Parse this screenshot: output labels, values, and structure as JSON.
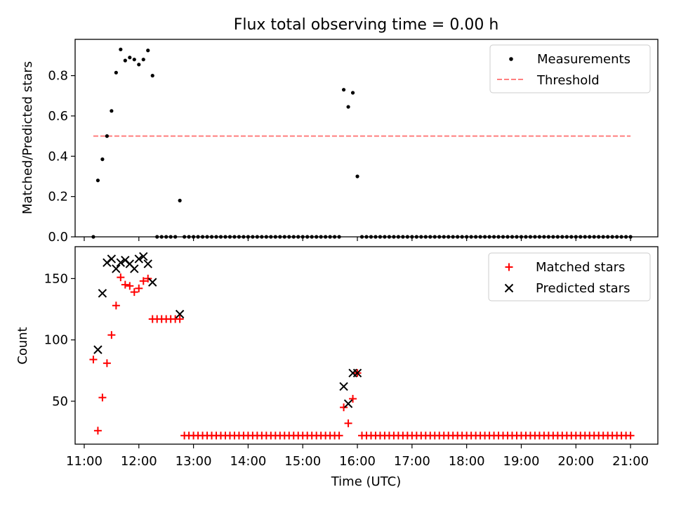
{
  "figure": {
    "title": "Flux total observing time = 0.00 h",
    "xlabel": "Time (UTC)",
    "xtick_labels": [
      "11:00",
      "12:00",
      "13:00",
      "14:00",
      "15:00",
      "16:00",
      "17:00",
      "18:00",
      "19:00",
      "20:00",
      "21:00"
    ]
  },
  "colors": {
    "measurements": "#000000",
    "threshold": "#ff7f7f",
    "matched": "#ff0000",
    "predicted": "#000000"
  },
  "chart_data": [
    {
      "type": "scatter",
      "panel": "top",
      "ylabel": "Matched/Predicted stars",
      "xlim": [
        "10:50",
        "21:30"
      ],
      "ylim": [
        0,
        0.98
      ],
      "yticks": [
        0.0,
        0.2,
        0.4,
        0.6,
        0.8
      ],
      "ytick_labels": [
        "0.0",
        "0.2",
        "0.4",
        "0.6",
        "0.8"
      ],
      "legend_position": "upper right",
      "series": [
        {
          "name": "Measurements",
          "marker": "dot",
          "points": [
            [
              "11:10",
              0
            ],
            [
              "11:15",
              0.28
            ],
            [
              "11:20",
              0.385
            ],
            [
              "11:25",
              0.5
            ],
            [
              "11:30",
              0.625
            ],
            [
              "11:35",
              0.815
            ],
            [
              "11:40",
              0.93
            ],
            [
              "11:45",
              0.875
            ],
            [
              "11:50",
              0.89
            ],
            [
              "11:55",
              0.88
            ],
            [
              "12:00",
              0.855
            ],
            [
              "12:05",
              0.88
            ],
            [
              "12:10",
              0.925
            ],
            [
              "12:15",
              0.8
            ],
            [
              "12:20",
              0
            ],
            [
              "12:25",
              0
            ],
            [
              "12:30",
              0
            ],
            [
              "12:35",
              0
            ],
            [
              "12:40",
              0
            ],
            [
              "12:45",
              0.18
            ],
            [
              "12:50",
              0
            ],
            [
              "12:55",
              0
            ],
            [
              "13:00",
              0
            ],
            [
              "13:05",
              0
            ],
            [
              "13:10",
              0
            ],
            [
              "13:15",
              0
            ],
            [
              "13:20",
              0
            ],
            [
              "13:25",
              0
            ],
            [
              "13:30",
              0
            ],
            [
              "13:35",
              0
            ],
            [
              "13:40",
              0
            ],
            [
              "13:45",
              0
            ],
            [
              "13:50",
              0
            ],
            [
              "13:55",
              0
            ],
            [
              "14:00",
              0
            ],
            [
              "14:05",
              0
            ],
            [
              "14:10",
              0
            ],
            [
              "14:15",
              0
            ],
            [
              "14:20",
              0
            ],
            [
              "14:25",
              0
            ],
            [
              "14:30",
              0
            ],
            [
              "14:35",
              0
            ],
            [
              "14:40",
              0
            ],
            [
              "14:45",
              0
            ],
            [
              "14:50",
              0
            ],
            [
              "14:55",
              0
            ],
            [
              "15:00",
              0
            ],
            [
              "15:05",
              0
            ],
            [
              "15:10",
              0
            ],
            [
              "15:15",
              0
            ],
            [
              "15:20",
              0
            ],
            [
              "15:25",
              0
            ],
            [
              "15:30",
              0
            ],
            [
              "15:35",
              0
            ],
            [
              "15:40",
              0
            ],
            [
              "15:45",
              0.73
            ],
            [
              "15:50",
              0.645
            ],
            [
              "15:55",
              0.715
            ],
            [
              "16:00",
              0.3
            ],
            [
              "16:05",
              0
            ],
            [
              "16:10",
              0
            ],
            [
              "16:15",
              0
            ],
            [
              "16:20",
              0
            ],
            [
              "16:25",
              0
            ],
            [
              "16:30",
              0
            ],
            [
              "16:35",
              0
            ],
            [
              "16:40",
              0
            ],
            [
              "16:45",
              0
            ],
            [
              "16:50",
              0
            ],
            [
              "16:55",
              0
            ],
            [
              "17:00",
              0
            ],
            [
              "17:05",
              0
            ],
            [
              "17:10",
              0
            ],
            [
              "17:15",
              0
            ],
            [
              "17:20",
              0
            ],
            [
              "17:25",
              0
            ],
            [
              "17:30",
              0
            ],
            [
              "17:35",
              0
            ],
            [
              "17:40",
              0
            ],
            [
              "17:45",
              0
            ],
            [
              "17:50",
              0
            ],
            [
              "17:55",
              0
            ],
            [
              "18:00",
              0
            ],
            [
              "18:05",
              0
            ],
            [
              "18:10",
              0
            ],
            [
              "18:15",
              0
            ],
            [
              "18:20",
              0
            ],
            [
              "18:25",
              0
            ],
            [
              "18:30",
              0
            ],
            [
              "18:35",
              0
            ],
            [
              "18:40",
              0
            ],
            [
              "18:45",
              0
            ],
            [
              "18:50",
              0
            ],
            [
              "18:55",
              0
            ],
            [
              "19:00",
              0
            ],
            [
              "19:05",
              0
            ],
            [
              "19:10",
              0
            ],
            [
              "19:15",
              0
            ],
            [
              "19:20",
              0
            ],
            [
              "19:25",
              0
            ],
            [
              "19:30",
              0
            ],
            [
              "19:35",
              0
            ],
            [
              "19:40",
              0
            ],
            [
              "19:45",
              0
            ],
            [
              "19:50",
              0
            ],
            [
              "19:55",
              0
            ],
            [
              "20:00",
              0
            ],
            [
              "20:05",
              0
            ],
            [
              "20:10",
              0
            ],
            [
              "20:15",
              0
            ],
            [
              "20:20",
              0
            ],
            [
              "20:25",
              0
            ],
            [
              "20:30",
              0
            ],
            [
              "20:35",
              0
            ],
            [
              "20:40",
              0
            ],
            [
              "20:45",
              0
            ],
            [
              "20:50",
              0
            ],
            [
              "20:55",
              0
            ],
            [
              "21:00",
              0
            ]
          ]
        },
        {
          "name": "Threshold",
          "type": "line",
          "style": "dashed",
          "points": [
            [
              "11:10",
              0.5
            ],
            [
              "21:00",
              0.5
            ]
          ]
        }
      ]
    },
    {
      "type": "scatter",
      "panel": "bottom",
      "ylabel": "Count",
      "xlim": [
        "10:50",
        "21:30"
      ],
      "ylim": [
        15,
        176
      ],
      "yticks": [
        50,
        100,
        150
      ],
      "ytick_labels": [
        "50",
        "100",
        "150"
      ],
      "legend_position": "upper right",
      "series": [
        {
          "name": "Matched stars",
          "marker": "plus",
          "points": [
            [
              "11:10",
              84
            ],
            [
              "11:15",
              26
            ],
            [
              "11:20",
              53
            ],
            [
              "11:25",
              81
            ],
            [
              "11:30",
              104
            ],
            [
              "11:35",
              128
            ],
            [
              "11:40",
              151
            ],
            [
              "11:45",
              145
            ],
            [
              "11:50",
              144
            ],
            [
              "11:55",
              139
            ],
            [
              "12:00",
              142
            ],
            [
              "12:05",
              148
            ],
            [
              "12:10",
              150
            ],
            [
              "12:15",
              117
            ],
            [
              "12:20",
              117
            ],
            [
              "12:25",
              117
            ],
            [
              "12:30",
              117
            ],
            [
              "12:35",
              117
            ],
            [
              "12:40",
              117
            ],
            [
              "12:45",
              117
            ],
            [
              "12:50",
              22
            ],
            [
              "12:55",
              22
            ],
            [
              "13:00",
              22
            ],
            [
              "13:05",
              22
            ],
            [
              "13:10",
              22
            ],
            [
              "13:15",
              22
            ],
            [
              "13:20",
              22
            ],
            [
              "13:25",
              22
            ],
            [
              "13:30",
              22
            ],
            [
              "13:35",
              22
            ],
            [
              "13:40",
              22
            ],
            [
              "13:45",
              22
            ],
            [
              "13:50",
              22
            ],
            [
              "13:55",
              22
            ],
            [
              "14:00",
              22
            ],
            [
              "14:05",
              22
            ],
            [
              "14:10",
              22
            ],
            [
              "14:15",
              22
            ],
            [
              "14:20",
              22
            ],
            [
              "14:25",
              22
            ],
            [
              "14:30",
              22
            ],
            [
              "14:35",
              22
            ],
            [
              "14:40",
              22
            ],
            [
              "14:45",
              22
            ],
            [
              "14:50",
              22
            ],
            [
              "14:55",
              22
            ],
            [
              "15:00",
              22
            ],
            [
              "15:05",
              22
            ],
            [
              "15:10",
              22
            ],
            [
              "15:15",
              22
            ],
            [
              "15:20",
              22
            ],
            [
              "15:25",
              22
            ],
            [
              "15:30",
              22
            ],
            [
              "15:35",
              22
            ],
            [
              "15:40",
              22
            ],
            [
              "15:45",
              45
            ],
            [
              "15:50",
              32
            ],
            [
              "15:55",
              52
            ],
            [
              "16:00",
              73
            ],
            [
              "16:05",
              22
            ],
            [
              "16:10",
              22
            ],
            [
              "16:15",
              22
            ],
            [
              "16:20",
              22
            ],
            [
              "16:25",
              22
            ],
            [
              "16:30",
              22
            ],
            [
              "16:35",
              22
            ],
            [
              "16:40",
              22
            ],
            [
              "16:45",
              22
            ],
            [
              "16:50",
              22
            ],
            [
              "16:55",
              22
            ],
            [
              "17:00",
              22
            ],
            [
              "17:05",
              22
            ],
            [
              "17:10",
              22
            ],
            [
              "17:15",
              22
            ],
            [
              "17:20",
              22
            ],
            [
              "17:25",
              22
            ],
            [
              "17:30",
              22
            ],
            [
              "17:35",
              22
            ],
            [
              "17:40",
              22
            ],
            [
              "17:45",
              22
            ],
            [
              "17:50",
              22
            ],
            [
              "17:55",
              22
            ],
            [
              "18:00",
              22
            ],
            [
              "18:05",
              22
            ],
            [
              "18:10",
              22
            ],
            [
              "18:15",
              22
            ],
            [
              "18:20",
              22
            ],
            [
              "18:25",
              22
            ],
            [
              "18:30",
              22
            ],
            [
              "18:35",
              22
            ],
            [
              "18:40",
              22
            ],
            [
              "18:45",
              22
            ],
            [
              "18:50",
              22
            ],
            [
              "18:55",
              22
            ],
            [
              "19:00",
              22
            ],
            [
              "19:05",
              22
            ],
            [
              "19:10",
              22
            ],
            [
              "19:15",
              22
            ],
            [
              "19:20",
              22
            ],
            [
              "19:25",
              22
            ],
            [
              "19:30",
              22
            ],
            [
              "19:35",
              22
            ],
            [
              "19:40",
              22
            ],
            [
              "19:45",
              22
            ],
            [
              "19:50",
              22
            ],
            [
              "19:55",
              22
            ],
            [
              "20:00",
              22
            ],
            [
              "20:05",
              22
            ],
            [
              "20:10",
              22
            ],
            [
              "20:15",
              22
            ],
            [
              "20:20",
              22
            ],
            [
              "20:25",
              22
            ],
            [
              "20:30",
              22
            ],
            [
              "20:35",
              22
            ],
            [
              "20:40",
              22
            ],
            [
              "20:45",
              22
            ],
            [
              "20:50",
              22
            ],
            [
              "20:55",
              22
            ],
            [
              "21:00",
              22
            ]
          ]
        },
        {
          "name": "Predicted stars",
          "marker": "x",
          "points": [
            [
              "11:15",
              92
            ],
            [
              "11:20",
              138
            ],
            [
              "11:25",
              163
            ],
            [
              "11:30",
              166
            ],
            [
              "11:35",
              158
            ],
            [
              "11:40",
              163
            ],
            [
              "11:45",
              165
            ],
            [
              "11:50",
              162
            ],
            [
              "11:55",
              158
            ],
            [
              "12:00",
              166
            ],
            [
              "12:05",
              168
            ],
            [
              "12:10",
              162
            ],
            [
              "12:15",
              147
            ],
            [
              "12:45",
              121
            ],
            [
              "15:45",
              62
            ],
            [
              "15:50",
              48
            ],
            [
              "15:55",
              73
            ],
            [
              "16:00",
              73
            ]
          ]
        }
      ]
    }
  ]
}
